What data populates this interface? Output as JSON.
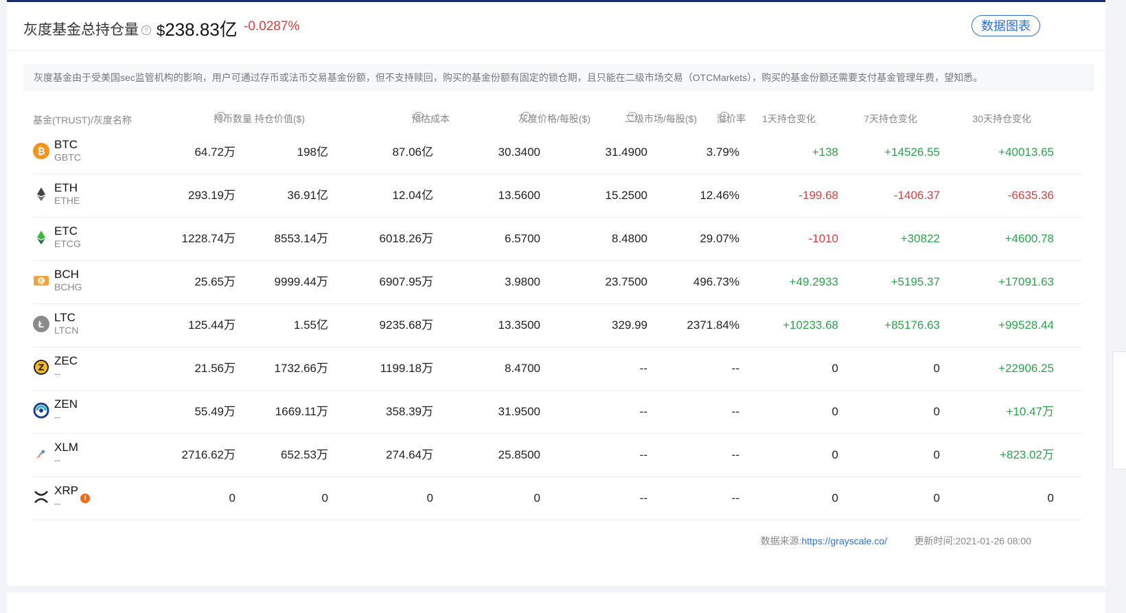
{
  "header": {
    "title": "灰度基金总持仓量",
    "total_prefix": "$",
    "total_value": "238.83亿",
    "change": "-0.0287%",
    "chart_button": "数据图表"
  },
  "notice": "灰度基金由于受美国sec监管机构的影响，用户可通过存币或法币交易基金份额，但不支持赎回，购买的基金份额有固定的锁仓期，且只能在二级市场交易（OTCMarkets），购买的基金份额还需要支付基金管理年费，望知悉。",
  "columns": {
    "name": "基金(TRUST)/灰度名称",
    "holdings": "持币数量",
    "value": "持仓价值($)",
    "cost": "预估成本",
    "price": "灰度价格/每股($)",
    "secondary": "二级市场/每股($)",
    "premium": "溢价率",
    "d1": "1天持仓变化",
    "d7": "7天持仓变化",
    "d30": "30天持仓变化"
  },
  "rows": [
    {
      "sym": "BTC",
      "sub": "GBTC",
      "icon": "bitcoin-icon",
      "holdings": "64.72万",
      "value": "198亿",
      "cost": "87.06亿",
      "price": "30.3400",
      "secondary": "31.4900",
      "premium": "3.79%",
      "d1": "+138",
      "d7": "+14526.55",
      "d30": "+40013.65"
    },
    {
      "sym": "ETH",
      "sub": "ETHE",
      "icon": "ethereum-icon",
      "holdings": "293.19万",
      "value": "36.91亿",
      "cost": "12.04亿",
      "price": "13.5600",
      "secondary": "15.2500",
      "premium": "12.46%",
      "d1": "-199.68",
      "d7": "-1406.37",
      "d30": "-6635.36"
    },
    {
      "sym": "ETC",
      "sub": "ETCG",
      "icon": "ethereum-classic-icon",
      "holdings": "1228.74万",
      "value": "8553.14万",
      "cost": "6018.26万",
      "price": "6.5700",
      "secondary": "8.4800",
      "premium": "29.07%",
      "d1": "-1010",
      "d7": "+30822",
      "d30": "+4600.78"
    },
    {
      "sym": "BCH",
      "sub": "BCHG",
      "icon": "bitcoin-cash-icon",
      "holdings": "25.65万",
      "value": "9999.44万",
      "cost": "6907.95万",
      "price": "3.9800",
      "secondary": "23.7500",
      "premium": "496.73%",
      "d1": "+49.2933",
      "d7": "+5195.37",
      "d30": "+17091.63"
    },
    {
      "sym": "LTC",
      "sub": "LTCN",
      "icon": "litecoin-icon",
      "holdings": "125.44万",
      "value": "1.55亿",
      "cost": "9235.68万",
      "price": "13.3500",
      "secondary": "329.99",
      "premium": "2371.84%",
      "d1": "+10233.68",
      "d7": "+85176.63",
      "d30": "+99528.44"
    },
    {
      "sym": "ZEC",
      "sub": "--",
      "icon": "zcash-icon",
      "holdings": "21.56万",
      "value": "1732.66万",
      "cost": "1199.18万",
      "price": "8.4700",
      "secondary": "--",
      "premium": "--",
      "d1": "0",
      "d7": "0",
      "d30": "+22906.25"
    },
    {
      "sym": "ZEN",
      "sub": "--",
      "icon": "horizen-icon",
      "holdings": "55.49万",
      "value": "1669.11万",
      "cost": "358.39万",
      "price": "31.9500",
      "secondary": "--",
      "premium": "--",
      "d1": "0",
      "d7": "0",
      "d30": "+10.47万"
    },
    {
      "sym": "XLM",
      "sub": "--",
      "icon": "stellar-icon",
      "holdings": "2716.62万",
      "value": "652.53万",
      "cost": "274.64万",
      "price": "25.8500",
      "secondary": "--",
      "premium": "--",
      "d1": "0",
      "d7": "0",
      "d30": "+823.02万"
    },
    {
      "sym": "XRP",
      "sub": "--",
      "icon": "xrp-icon",
      "holdings": "0",
      "value": "0",
      "cost": "0",
      "price": "0",
      "secondary": "--",
      "premium": "--",
      "d1": "0",
      "d7": "0",
      "d30": "0"
    }
  ],
  "footer": {
    "source_label": "数据来源:",
    "source_link": "https://grayscale.co/",
    "update_label": "更新时间:",
    "update_time": "2021-01-26 08:00"
  },
  "colors": {
    "positive": "#2aa44a",
    "negative": "#e23b3b",
    "accent": "#2f6fd3"
  }
}
